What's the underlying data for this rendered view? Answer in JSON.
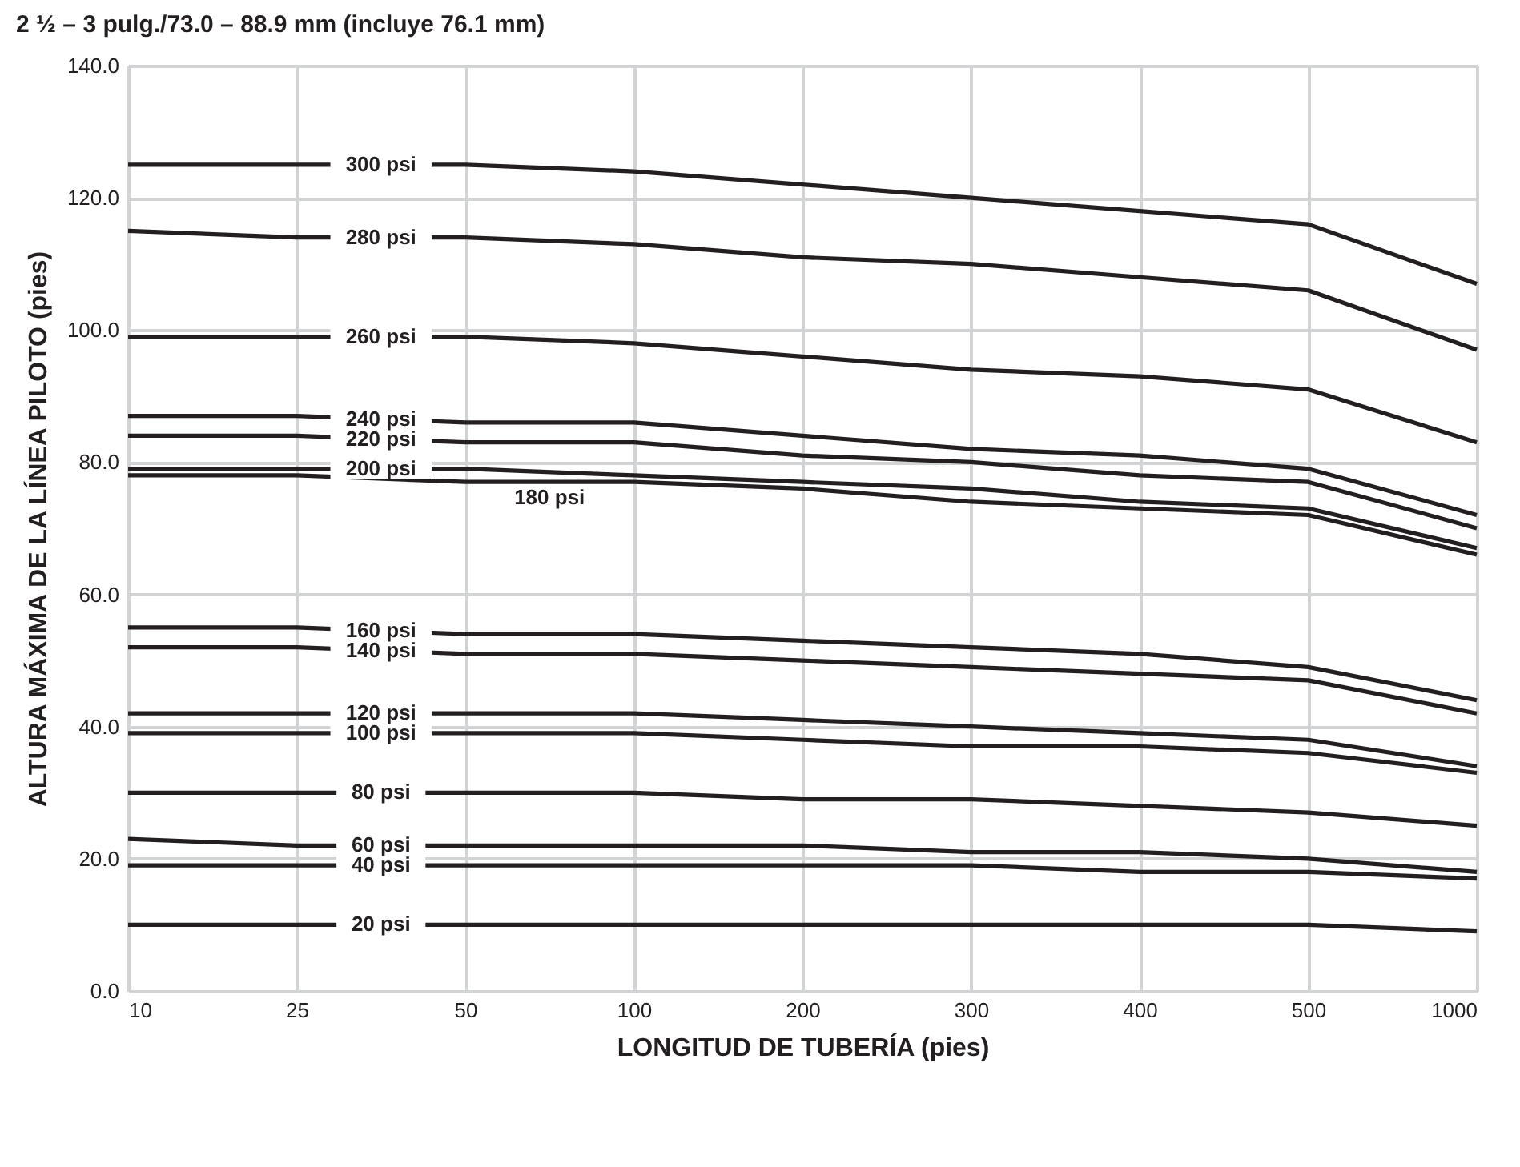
{
  "chart_data": {
    "type": "line",
    "title": "2 ½ – 3 pulg./73.0 – 88.9 mm (incluye 76.1 mm)",
    "xlabel": "LONGITUD DE TUBERÍA (pies)",
    "ylabel": "ALTURA MÁXIMA DE LA LÍNEA PILOTO (pies)",
    "categories": [
      "10",
      "25",
      "50",
      "100",
      "200",
      "300",
      "400",
      "500",
      "1000"
    ],
    "ylim": [
      0,
      140
    ],
    "yticks": [
      {
        "value": 0,
        "label": "0.0"
      },
      {
        "value": 20,
        "label": "20.0"
      },
      {
        "value": 40,
        "label": "40.0"
      },
      {
        "value": 60,
        "label": "60.0"
      },
      {
        "value": 80,
        "label": "80.0"
      },
      {
        "value": 100,
        "label": "100.0"
      },
      {
        "value": 120,
        "label": "120.0"
      },
      {
        "value": 140,
        "label": "140.0"
      }
    ],
    "grid": true,
    "series": [
      {
        "name": "300 psi",
        "color": "#231f20",
        "values": [
          125,
          125,
          125,
          124,
          122,
          120,
          118,
          116,
          107
        ]
      },
      {
        "name": "280 psi",
        "color": "#231f20",
        "values": [
          115,
          114,
          114,
          113,
          111,
          110,
          108,
          106,
          97
        ]
      },
      {
        "name": "260 psi",
        "color": "#231f20",
        "values": [
          99,
          99,
          99,
          98,
          96,
          94,
          93,
          91,
          83
        ]
      },
      {
        "name": "240 psi",
        "color": "#231f20",
        "values": [
          87,
          87,
          86,
          86,
          84,
          82,
          81,
          79,
          72
        ]
      },
      {
        "name": "220 psi",
        "color": "#231f20",
        "values": [
          84,
          84,
          83,
          83,
          81,
          80,
          78,
          77,
          70
        ]
      },
      {
        "name": "200 psi",
        "color": "#231f20",
        "values": [
          79,
          79,
          79,
          78,
          77,
          76,
          74,
          73,
          67
        ]
      },
      {
        "name": "180 psi",
        "color": "#231f20",
        "values": [
          78,
          78,
          77,
          77,
          76,
          74,
          73,
          72,
          66
        ]
      },
      {
        "name": "160 psi",
        "color": "#231f20",
        "values": [
          55,
          55,
          54,
          54,
          53,
          52,
          51,
          49,
          44
        ]
      },
      {
        "name": "140 psi",
        "color": "#231f20",
        "values": [
          52,
          52,
          51,
          51,
          50,
          49,
          48,
          47,
          42
        ]
      },
      {
        "name": "120 psi",
        "color": "#231f20",
        "values": [
          42,
          42,
          42,
          42,
          41,
          40,
          39,
          38,
          34
        ]
      },
      {
        "name": "100 psi",
        "color": "#231f20",
        "values": [
          39,
          39,
          39,
          39,
          38,
          37,
          37,
          36,
          33
        ]
      },
      {
        "name": "80 psi",
        "color": "#231f20",
        "values": [
          30,
          30,
          30,
          30,
          29,
          29,
          28,
          27,
          25
        ]
      },
      {
        "name": "60 psi",
        "color": "#231f20",
        "values": [
          23,
          22,
          22,
          22,
          22,
          21,
          21,
          20,
          18
        ]
      },
      {
        "name": "40 psi",
        "color": "#231f20",
        "values": [
          19,
          19,
          19,
          19,
          19,
          19,
          18,
          18,
          17
        ]
      },
      {
        "name": "20 psi",
        "color": "#231f20",
        "values": [
          10,
          10,
          10,
          10,
          10,
          10,
          10,
          10,
          9
        ]
      }
    ]
  }
}
